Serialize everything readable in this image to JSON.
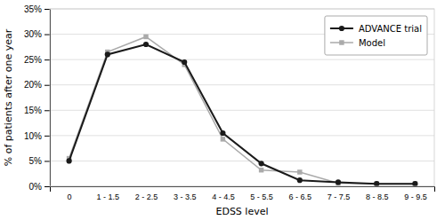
{
  "chart_data": {
    "type": "line",
    "xlabel": "EDSS level",
    "ylabel": "% of patients after one year",
    "categories": [
      "0",
      "1 - 1.5",
      "2 - 2.5",
      "3 - 3.5",
      "4 - 4.5",
      "5 - 5.5",
      "6 - 6.5",
      "7 - 7.5",
      "8 - 8.5",
      "9 - 9.5"
    ],
    "series": [
      {
        "name": "ADVANCE trial",
        "color": "#1a1a1a",
        "marker": "circle",
        "values": [
          0.05,
          0.26,
          0.28,
          0.245,
          0.105,
          0.045,
          0.012,
          0.008,
          0.005,
          0.005
        ]
      },
      {
        "name": "Model",
        "color": "#aaaaaa",
        "marker": "square",
        "values": [
          0.055,
          0.265,
          0.295,
          0.24,
          0.093,
          0.032,
          0.028,
          0.006,
          0.005,
          0.005
        ]
      }
    ],
    "ylim": [
      0,
      0.35
    ],
    "yticks": [
      {
        "value": 0,
        "label": "0%"
      },
      {
        "value": 0.05,
        "label": "5%"
      },
      {
        "value": 0.1,
        "label": "10%"
      },
      {
        "value": 0.15,
        "label": "15%"
      },
      {
        "value": 0.2,
        "label": "20%"
      },
      {
        "value": 0.25,
        "label": "25%"
      },
      {
        "value": 0.3,
        "label": "30%"
      },
      {
        "value": 0.35,
        "label": "35%"
      }
    ],
    "grid": true,
    "legend": "upper right"
  }
}
